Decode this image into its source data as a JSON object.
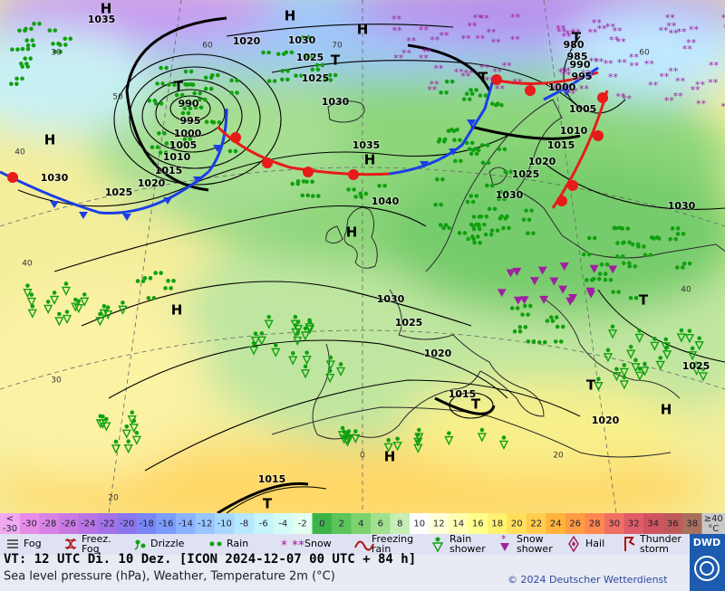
{
  "map": {
    "pressure_labels": [
      "1035",
      "1020",
      "1030",
      "1025",
      "1025",
      "1030",
      "990",
      "995",
      "1000",
      "1005",
      "1010",
      "1015",
      "1020",
      "1030",
      "1025",
      "1035",
      "1040",
      "1030",
      "1025",
      "1020",
      "1015",
      "1020",
      "1025",
      "1015",
      "980",
      "985",
      "990",
      "995",
      "1000",
      "1005",
      "1010",
      "1015",
      "1020",
      "1025",
      "1030",
      "1030"
    ],
    "centers": [
      "H",
      "H",
      "H",
      "H",
      "H",
      "H",
      "H",
      "H",
      "H",
      "T",
      "T",
      "T",
      "T",
      "T",
      "T",
      "T",
      "T"
    ],
    "temperature_labels": [
      "60",
      "50",
      "40",
      "40",
      "30",
      "20",
      "70",
      "60",
      "0",
      "20",
      "30",
      "40"
    ]
  },
  "scale": {
    "low_label": [
      "<",
      "-30"
    ],
    "values": [
      -30,
      -28,
      -26,
      -24,
      -22,
      -20,
      -18,
      -16,
      -14,
      -12,
      -10,
      -8,
      -6,
      -4,
      -2,
      0,
      2,
      4,
      6,
      8,
      10,
      12,
      14,
      16,
      18,
      20,
      22,
      24,
      26,
      28,
      30,
      32,
      34,
      36,
      38
    ],
    "colors": [
      "#e68be6",
      "#d782e4",
      "#c87ae2",
      "#b874e4",
      "#a472e8",
      "#8c76ee",
      "#7a86f6",
      "#7c9cfc",
      "#8ab2ff",
      "#98c6ff",
      "#a8d8ff",
      "#b6e8ff",
      "#c6f4fc",
      "#d4fcf6",
      "#e2fff0",
      "#3cb44a",
      "#5cc45a",
      "#7cd26e",
      "#a0e08e",
      "#c6eeb4",
      "#ffffff",
      "#ffffd8",
      "#ffffb4",
      "#ffff8c",
      "#fff070",
      "#ffe05c",
      "#ffcc4c",
      "#ffb43c",
      "#ff9c44",
      "#ff8850",
      "#f07064",
      "#e05c68",
      "#d05460",
      "#c05a5a",
      "#a8705c"
    ],
    "low_color": "#f0a8f0",
    "high_label": [
      "≥40",
      "°C"
    ],
    "high_color": "#c8c8c8"
  },
  "legend": [
    {
      "label": [
        "Fog"
      ]
    },
    {
      "label": [
        "Freez.",
        "Fog"
      ]
    },
    {
      "label": [
        "Drizzle"
      ]
    },
    {
      "label": [
        "Rain"
      ]
    },
    {
      "label": [
        "Snow"
      ]
    },
    {
      "label": [
        "Freezing",
        "rain"
      ]
    },
    {
      "label": [
        "Rain",
        "shower"
      ]
    },
    {
      "label": [
        "Snow",
        "shower"
      ]
    },
    {
      "label": [
        "Hail"
      ]
    },
    {
      "label": [
        "Thunder",
        "storm"
      ]
    }
  ],
  "footer": {
    "valid_time": "VT: 12 UTC Di.  10 Dez. [ICON 2024-12-07  00 UTC + 84 h]",
    "description": "Sea level pressure (hPa), Weather, Temperature 2m (°C)",
    "copyright": "© 2024 Deutscher Wetterdienst",
    "logo": "DWD"
  }
}
